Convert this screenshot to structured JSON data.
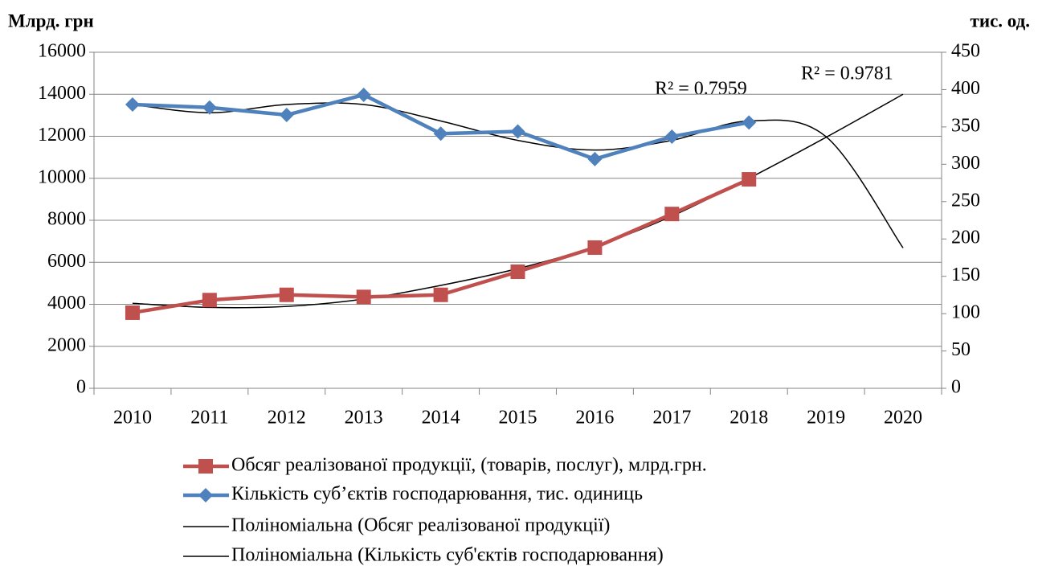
{
  "chart_data": {
    "type": "line",
    "y_label": "Млрд. грн",
    "y2_label": "тис. од.",
    "categories": [
      "2010",
      "2011",
      "2012",
      "2013",
      "2014",
      "2015",
      "2016",
      "2017",
      "2018",
      "2019",
      "2020"
    ],
    "ylim": [
      0,
      16000
    ],
    "yticks": [
      0,
      2000,
      4000,
      6000,
      8000,
      10000,
      12000,
      14000,
      16000
    ],
    "y2lim": [
      0,
      450
    ],
    "y2ticks": [
      0,
      50,
      100,
      150,
      200,
      250,
      300,
      350,
      400,
      450
    ],
    "grid": true,
    "series": [
      {
        "name": "Обсяг реалізованої продукції, (товарів, послуг), млрд.грн.",
        "color": "#c0504d",
        "marker": "square",
        "values": [
          3600,
          4200,
          4450,
          4350,
          4450,
          5550,
          6700,
          8300,
          9950,
          null,
          null
        ]
      },
      {
        "name": "Кількість суб’єктів господарювання, тис. одиниць",
        "color": "#4f81bd",
        "marker": "diamond",
        "axis": "y2",
        "values": [
          380,
          376,
          366,
          393,
          341,
          344,
          307,
          337,
          356,
          null,
          null
        ]
      },
      {
        "name": "Поліноміальна (Обсяг реалізованої продукції)",
        "color": "#000000",
        "trend": true,
        "values": [
          4050,
          3850,
          3900,
          4250,
          4900,
          5700,
          6750,
          8200,
          10000,
          11950,
          14000
        ]
      },
      {
        "name": "Поліноміальна (Кількість суб'єктів господарювання)",
        "color": "#000000",
        "trend": true,
        "axis": "y2",
        "values": [
          380,
          369,
          380,
          380,
          358,
          332,
          319,
          332,
          358,
          337,
          188
        ]
      }
    ],
    "annotations": [
      "R² = 0.7959",
      "R² = 0.9781"
    ]
  }
}
